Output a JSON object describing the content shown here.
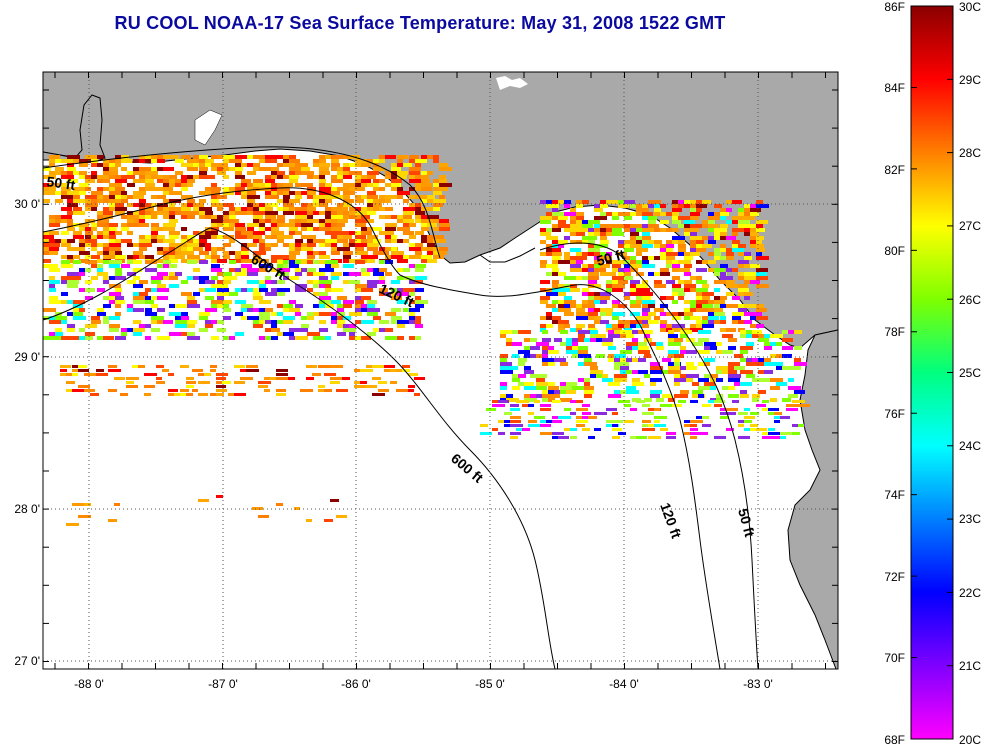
{
  "title": "RU COOL  NOAA-17  Sea Surface Temperature:  May 31, 2008 1522 GMT",
  "map": {
    "lon_ticks": [
      "-88 0'",
      "-87 0'",
      "-86 0'",
      "-85 0'",
      "-84 0'",
      "-83 0'"
    ],
    "lat_ticks": [
      "30 0'",
      "29 0'",
      "28 0'",
      "27 0'"
    ],
    "contour_labels": {
      "c50_west": "50 ft",
      "c600_west": "600 ft",
      "c120_mid": "120 ft",
      "c50_east": "50 ft",
      "c600_south": "600 ft",
      "c120_south": "120 ft",
      "c50_south": "50 ft"
    },
    "colors": {
      "land": "#a9a9a9",
      "sea": "#ffffff",
      "coastline": "#000000"
    }
  },
  "colorbar": {
    "fahrenheit_labels": [
      "86F",
      "84F",
      "82F",
      "80F",
      "78F",
      "76F",
      "74F",
      "72F",
      "70F",
      "68F"
    ],
    "celsius_labels": [
      "30C",
      "29C",
      "28C",
      "27C",
      "26C",
      "25C",
      "24C",
      "23C",
      "22C",
      "21C",
      "20C"
    ],
    "gradient_stops": [
      "#8b0000",
      "#ff0000",
      "#ff7f00",
      "#ffff00",
      "#7fff00",
      "#00ff7f",
      "#00ffff",
      "#007fff",
      "#0000ff",
      "#7f00ff",
      "#ff00ff"
    ]
  }
}
